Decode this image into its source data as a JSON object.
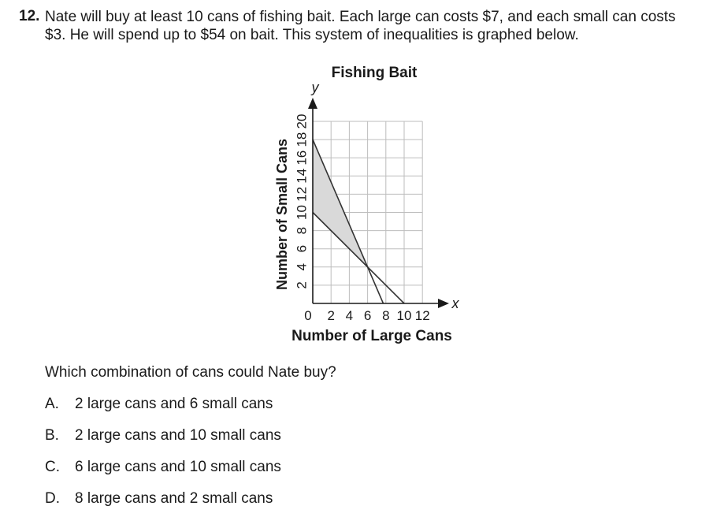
{
  "question": {
    "number": "12.",
    "text_line1": "Nate will buy at least 10 cans of fishing bait. Each large can costs $7, and each small can costs",
    "text_line2": "$3. He will spend up to $54 on bait. This system of inequalities is graphed below."
  },
  "chart_data": {
    "type": "line",
    "title": "Fishing Bait",
    "xlabel": "Number of Large Cans",
    "ylabel": "Number of Small Cans",
    "x_axis_symbol": "x",
    "y_axis_symbol": "y",
    "origin_label": "0",
    "xlim": [
      0,
      12
    ],
    "ylim": [
      0,
      20
    ],
    "x_ticks": [
      "2",
      "4",
      "6",
      "8",
      "10",
      "12"
    ],
    "y_ticks": [
      "2",
      "4",
      "6",
      "8",
      "10",
      "12",
      "14",
      "16",
      "18",
      "20"
    ],
    "grid": true,
    "series": [
      {
        "values": [
          [
            0,
            18
          ],
          [
            7.714,
            0
          ]
        ]
      },
      {
        "values": [
          [
            0,
            10
          ],
          [
            10,
            0
          ]
        ]
      }
    ],
    "shaded_region": [
      [
        0,
        10
      ],
      [
        0,
        18
      ],
      [
        6,
        4
      ]
    ],
    "colors": {
      "shading": "#d9d9d9",
      "lines": "#333333",
      "grid": "#bdbdbd"
    }
  },
  "prompt": "Which combination of cans could Nate buy?",
  "choices": [
    {
      "letter": "A.",
      "text": "2 large cans and 6 small cans"
    },
    {
      "letter": "B.",
      "text": "2 large cans and 10 small cans"
    },
    {
      "letter": "C.",
      "text": "6 large cans and 10 small cans"
    },
    {
      "letter": "D.",
      "text": "8 large cans and 2 small cans"
    }
  ]
}
